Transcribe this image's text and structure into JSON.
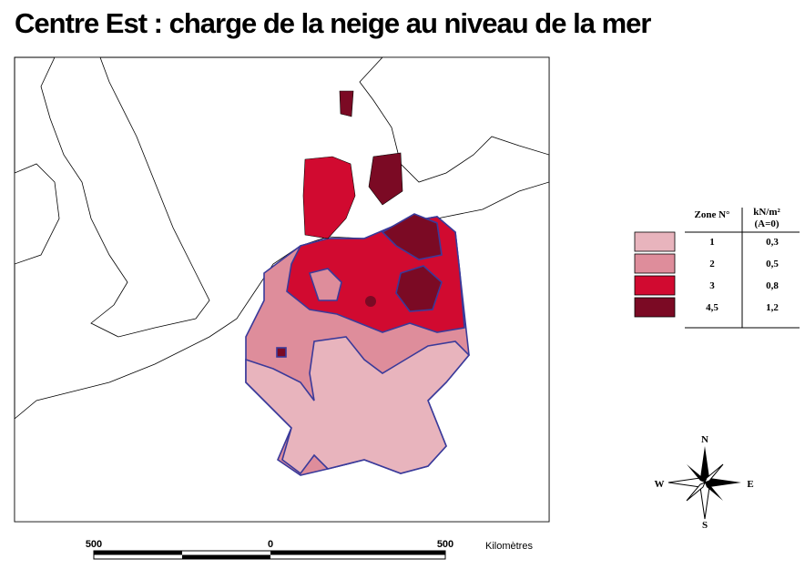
{
  "header": {
    "title": "Centre Est : charge de la neige au niveau de la mer"
  },
  "legend": {
    "columns": [
      "Zone N°",
      "kN/m²",
      "(A=0)"
    ],
    "rows": [
      {
        "zone": "1",
        "value": "0,3",
        "color": "#e8b4bd"
      },
      {
        "zone": "2",
        "value": "0,5",
        "color": "#de8d9b"
      },
      {
        "zone": "3",
        "value": "0,8",
        "color": "#d10a30"
      },
      {
        "zone": "4,5",
        "value": "1,2",
        "color": "#7b0a24"
      }
    ]
  },
  "compass": {
    "north": "N",
    "east": "E",
    "south": "S",
    "west": "W"
  },
  "scale": {
    "labels": [
      "500",
      "0",
      "500"
    ],
    "unit": "Kilomètres"
  }
}
